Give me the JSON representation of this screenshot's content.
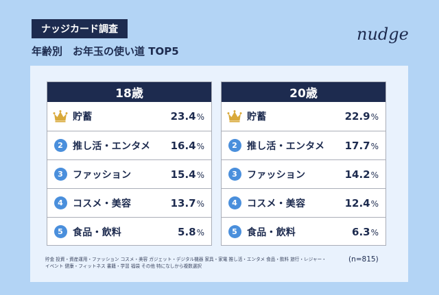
{
  "header": {
    "badge": "ナッジカード調査",
    "subtitle": "年齢別　お年玉の使い道 TOP5",
    "logo_text": "nudge"
  },
  "colors": {
    "background": "#b3d4f5",
    "panel": "#e9f2fd",
    "navy": "#1d2b4f",
    "rank_circle": "#4a8fdc",
    "crown": "#d9a93a"
  },
  "chart_data": [
    {
      "type": "table",
      "title": "18歳",
      "unit": "%",
      "rows": [
        {
          "rank": "1",
          "rank_icon": "crown-icon",
          "label": "貯蓄",
          "value": 23.4
        },
        {
          "rank": "2",
          "label": "推し活・エンタメ",
          "value": 16.4
        },
        {
          "rank": "3",
          "label": "ファッション",
          "value": 15.4
        },
        {
          "rank": "4",
          "label": "コスメ・美容",
          "value": 13.7
        },
        {
          "rank": "5",
          "label": "食品・飲料",
          "value": 5.8
        }
      ]
    },
    {
      "type": "table",
      "title": "20歳",
      "unit": "%",
      "rows": [
        {
          "rank": "1",
          "rank_icon": "crown-icon",
          "label": "貯蓄",
          "value": 22.9
        },
        {
          "rank": "2",
          "label": "推し活・エンタメ",
          "value": 17.7
        },
        {
          "rank": "3",
          "label": "ファッション",
          "value": 14.2
        },
        {
          "rank": "4",
          "label": "コスメ・美容",
          "value": 12.4
        },
        {
          "rank": "5",
          "label": "食品・飲料",
          "value": 6.3
        }
      ]
    }
  ],
  "footer": {
    "note_line1": "貯金 投資・資産運用・ファッション コスメ・美容 ガジェット・デジタル機器 家具・家電 推し活・エンタメ 食品・飲料 旅行・レジャー・",
    "note_line2": "イベント 健康・フィットネス 書籍・学習 福袋 その他 特になしから複数選択",
    "sample": "(n=815)"
  }
}
